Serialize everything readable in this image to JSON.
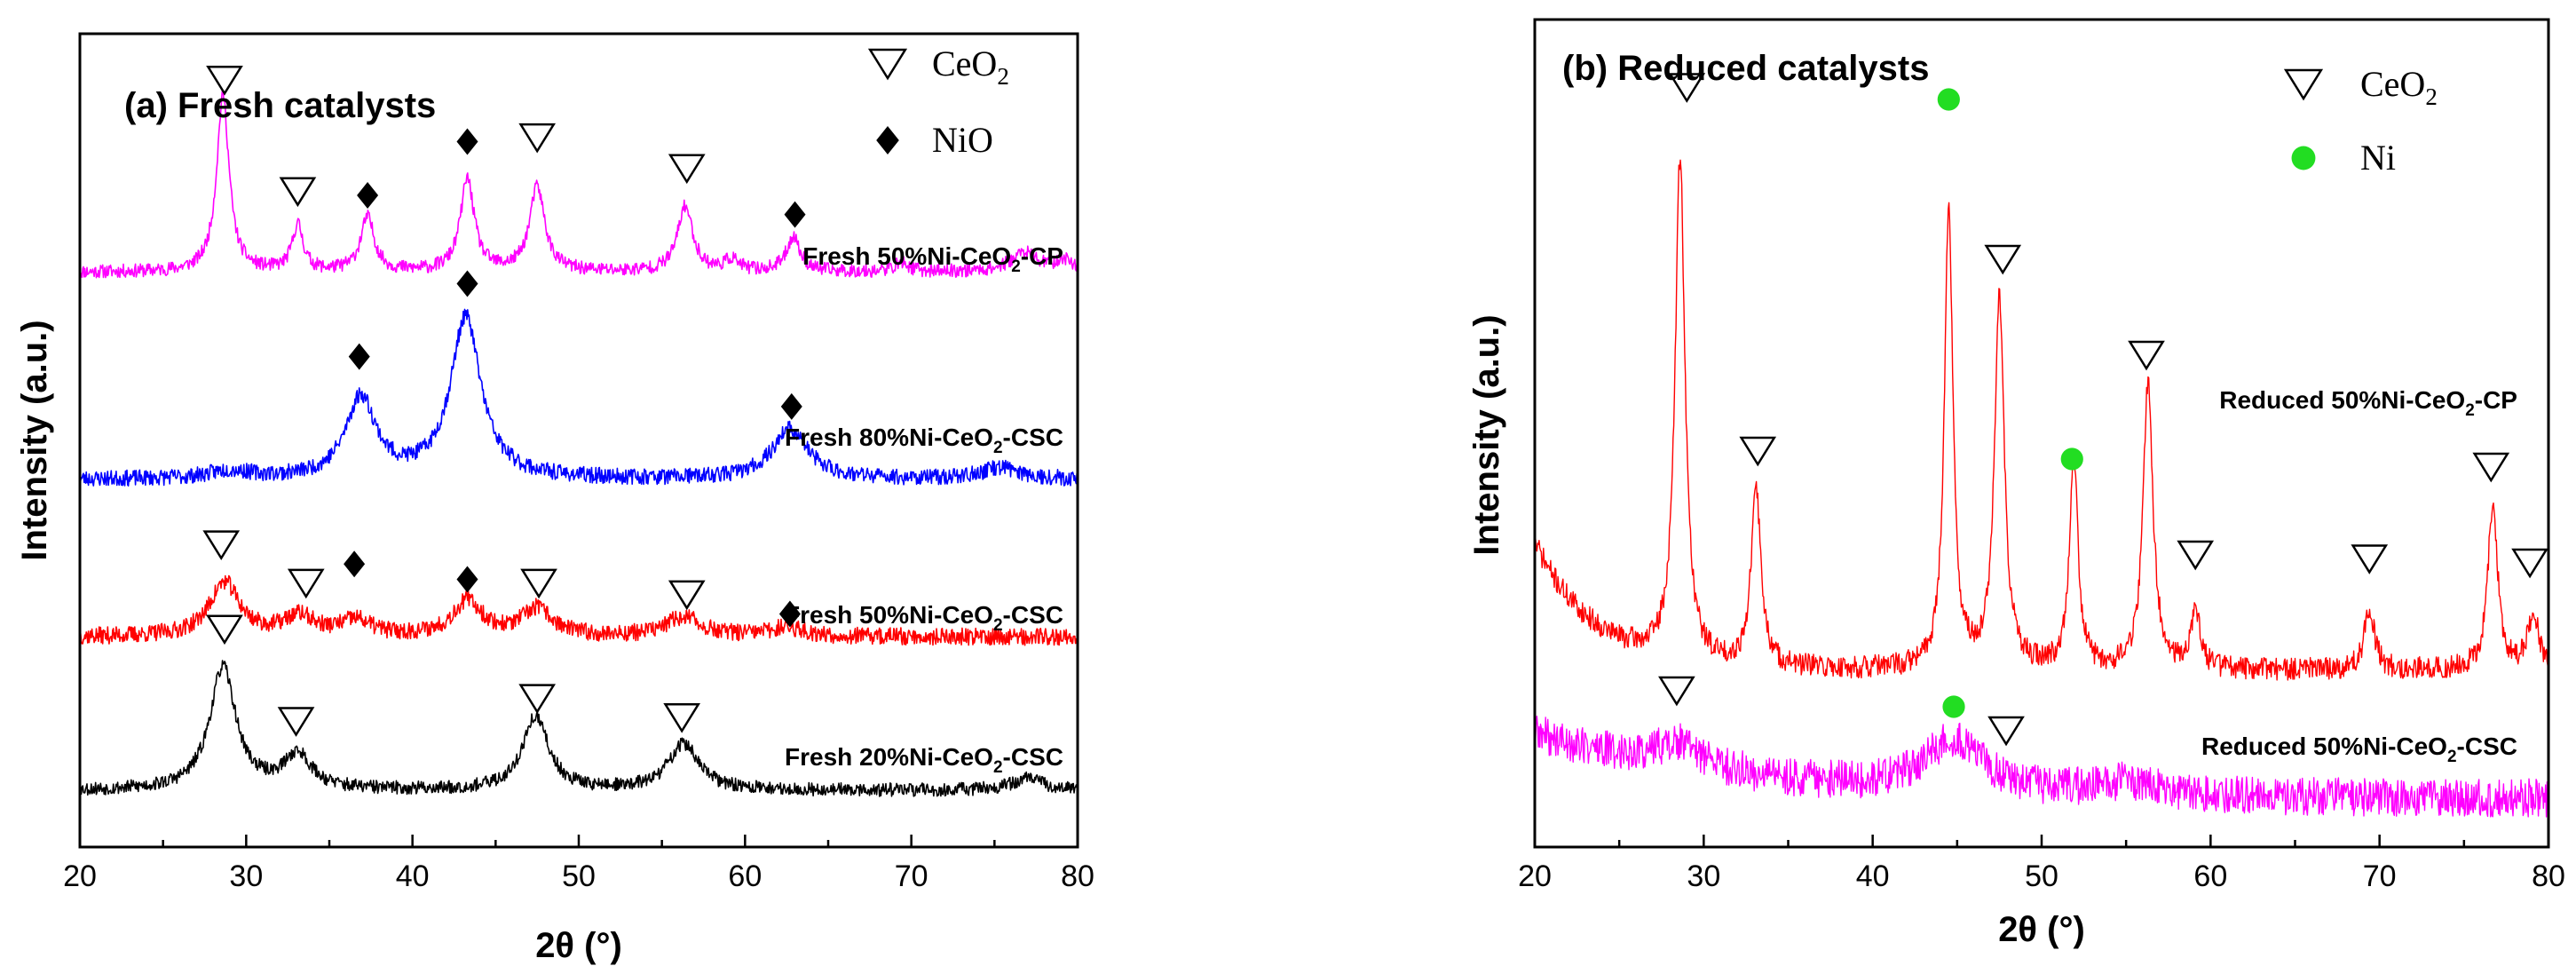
{
  "chart_data": [
    {
      "type": "line",
      "title": "(a) Fresh catalysts",
      "xlabel": "2θ (°)",
      "ylabel": "Intensity (a.u.)",
      "xlim": [
        20,
        80
      ],
      "ylim": [
        0,
        100
      ],
      "xticks": [
        20,
        30,
        40,
        50,
        60,
        70,
        80
      ],
      "xtick_labels": [
        "20",
        "30",
        "40",
        "50",
        "60",
        "70",
        "80"
      ],
      "legend": [
        {
          "symbol": "∇",
          "text": "CeO",
          "sub": "2",
          "marker": "triangle"
        },
        {
          "symbol": "◆",
          "text": "NiO",
          "sub": "",
          "marker": "diamond"
        }
      ],
      "series": [
        {
          "name": "Fresh 50%Ni-CeO2-CP",
          "label": "Fresh 50%Ni-CeO",
          "label_sub": "2",
          "label_suffix": "-CP",
          "color": "#ff00ff",
          "baseline": 71.5,
          "noise": 0.55,
          "seed": 11,
          "peaks": [
            [
              28.6,
              23,
              0.45
            ],
            [
              33.1,
              6,
              0.4
            ],
            [
              37.3,
              7,
              0.5
            ],
            [
              43.3,
              12,
              0.5
            ],
            [
              47.5,
              11,
              0.55
            ],
            [
              56.4,
              8.5,
              0.55
            ],
            [
              59.2,
              1.5,
              0.5
            ],
            [
              62.9,
              4.5,
              0.5
            ],
            [
              69.4,
              1.2,
              0.5
            ],
            [
              76.8,
              2.5,
              1.0
            ],
            [
              79.2,
              1.5,
              0.6
            ]
          ],
          "markers": [
            {
              "type": "triangle",
              "x": 28.7,
              "y": 96.5
            },
            {
              "type": "triangle",
              "x": 33.1,
              "y": 82
            },
            {
              "type": "diamond",
              "x": 37.3,
              "y": 81.5
            },
            {
              "type": "diamond",
              "x": 43.3,
              "y": 88.5
            },
            {
              "type": "triangle",
              "x": 47.5,
              "y": 89
            },
            {
              "type": "triangle",
              "x": 56.5,
              "y": 85
            },
            {
              "type": "diamond",
              "x": 63,
              "y": 79
            }
          ]
        },
        {
          "name": "Fresh 80%Ni-CeO2-CSC",
          "label": "Fresh 80%Ni-CeO",
          "label_sub": "2",
          "label_suffix": "-CSC",
          "color": "#0000ff",
          "baseline": 44.5,
          "noise": 0.65,
          "seed": 23,
          "peaks": [
            [
              36.9,
              10.5,
              1.1
            ],
            [
              43.2,
              21,
              1.1
            ],
            [
              62.7,
              6.5,
              1.3
            ],
            [
              75.4,
              1.5,
              1.4
            ],
            [
              29,
              1.0,
              1.5
            ]
          ],
          "markers": [
            {
              "type": "diamond",
              "x": 36.8,
              "y": 60.5
            },
            {
              "type": "diamond",
              "x": 43.3,
              "y": 70
            },
            {
              "type": "diamond",
              "x": 62.8,
              "y": 54
            }
          ]
        },
        {
          "name": "Fresh 50%Ni-CeO2-CSC",
          "label": "Fresh 50%Ni-CeO",
          "label_sub": "2",
          "label_suffix": "-CSC",
          "color": "#ff0000",
          "baseline": 24,
          "noise": 0.7,
          "seed": 37,
          "peaks": [
            [
              28.7,
              7,
              1.1
            ],
            [
              33.2,
              2.5,
              1.1
            ],
            [
              36.6,
              2,
              1.1
            ],
            [
              43.3,
              4.5,
              1.1
            ],
            [
              47.5,
              3.5,
              1.1
            ],
            [
              56.3,
              2.5,
              1.3
            ],
            [
              62.5,
              1.2,
              1.2
            ]
          ],
          "markers": [
            {
              "type": "triangle",
              "x": 28.5,
              "y": 36
            },
            {
              "type": "triangle",
              "x": 33.6,
              "y": 31
            },
            {
              "type": "diamond",
              "x": 36.5,
              "y": 33.5
            },
            {
              "type": "diamond",
              "x": 43.3,
              "y": 31.5
            },
            {
              "type": "triangle",
              "x": 47.6,
              "y": 31
            },
            {
              "type": "triangle",
              "x": 56.5,
              "y": 29.5
            },
            {
              "type": "diamond",
              "x": 62.7,
              "y": 27
            }
          ]
        },
        {
          "name": "Fresh 20%Ni-CeO2-CSC",
          "label": "Fresh 20%Ni-CeO",
          "label_sub": "2",
          "label_suffix": "-CSC",
          "color": "#000000",
          "baseline": 4,
          "noise": 0.55,
          "seed": 53,
          "peaks": [
            [
              28.6,
              16,
              0.95
            ],
            [
              33.1,
              4.5,
              1.0
            ],
            [
              47.4,
              9.5,
              0.95
            ],
            [
              56.3,
              6,
              1.1
            ],
            [
              77,
              1.5,
              1.2
            ]
          ],
          "markers": [
            {
              "type": "triangle",
              "x": 28.7,
              "y": 25
            },
            {
              "type": "triangle",
              "x": 33,
              "y": 13
            },
            {
              "type": "triangle",
              "x": 47.5,
              "y": 16
            },
            {
              "type": "triangle",
              "x": 56.2,
              "y": 13.5
            }
          ]
        }
      ]
    },
    {
      "type": "line",
      "title": "(b) Reduced catalysts",
      "xlabel": "2θ (°)",
      "ylabel": "Intensity (a.u.)",
      "xlim": [
        20,
        80
      ],
      "ylim": [
        0,
        100
      ],
      "xticks": [
        20,
        30,
        40,
        50,
        60,
        70,
        80
      ],
      "xtick_labels": [
        "20",
        "30",
        "40",
        "50",
        "60",
        "70",
        "80"
      ],
      "legend": [
        {
          "symbol": "∇",
          "text": "CeO",
          "sub": "2",
          "marker": "triangle"
        },
        {
          "symbol": "●",
          "text": "Ni",
          "sub": "",
          "marker": "circle"
        }
      ],
      "series": [
        {
          "name": "Reduced 50%Ni-CeO2-CP",
          "label": "Reduced 50%Ni-CeO",
          "label_sub": "2",
          "label_suffix": "-CP",
          "color": "#ff0000",
          "baseline": 20.5,
          "noise": 0.9,
          "seed": 71,
          "decay": [
            16,
            25,
            3.5
          ],
          "peaks": [
            [
              28.6,
              63,
              0.35
            ],
            [
              33.1,
              22,
              0.35
            ],
            [
              44.5,
              58,
              0.3
            ],
            [
              47.5,
              46,
              0.35
            ],
            [
              51.9,
              27,
              0.3
            ],
            [
              56.3,
              36,
              0.35
            ],
            [
              59.1,
              7,
              0.35
            ],
            [
              69.4,
              8,
              0.35
            ],
            [
              76.7,
              21,
              0.35
            ],
            [
              79.1,
              7,
              0.4
            ]
          ],
          "markers": [
            {
              "type": "triangle",
              "x": 29,
              "y": 93.5
            },
            {
              "type": "triangle",
              "x": 33.2,
              "y": 48
            },
            {
              "type": "circle",
              "x": 44.5,
              "y": 92
            },
            {
              "type": "triangle",
              "x": 47.7,
              "y": 72
            },
            {
              "type": "circle",
              "x": 51.8,
              "y": 47
            },
            {
              "type": "triangle",
              "x": 56.2,
              "y": 60
            },
            {
              "type": "triangle",
              "x": 59.1,
              "y": 35
            },
            {
              "type": "triangle",
              "x": 69.4,
              "y": 34.5
            },
            {
              "type": "triangle",
              "x": 76.6,
              "y": 46
            },
            {
              "type": "triangle",
              "x": 78.9,
              "y": 34
            }
          ]
        },
        {
          "name": "Reduced 50%Ni-CeO2-CSC",
          "label": "Reduced 50%Ni-CeO",
          "label_sub": "2",
          "label_suffix": "-CSC",
          "color": "#ff00ff",
          "baseline": 4.5,
          "noise": 1.5,
          "seed": 89,
          "decay": [
            8,
            30,
            12
          ],
          "peaks": [
            [
              28.5,
              3,
              1.8
            ],
            [
              44.8,
              6.5,
              2.0
            ],
            [
              55,
              1.5,
              2.5
            ]
          ],
          "markers": [
            {
              "type": "triangle",
              "x": 28.4,
              "y": 18
            },
            {
              "type": "circle",
              "x": 44.8,
              "y": 16
            },
            {
              "type": "triangle",
              "x": 47.9,
              "y": 13
            }
          ]
        }
      ]
    }
  ]
}
